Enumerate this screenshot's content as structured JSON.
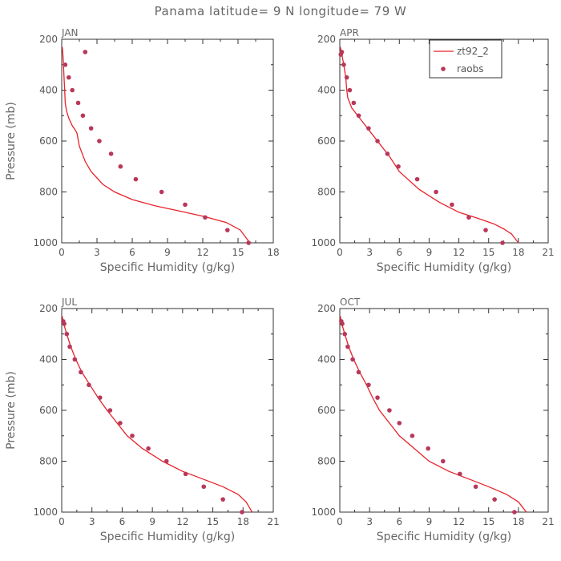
{
  "figure_title": "Panama  latitude= 9 N longitude= 79 W",
  "colors": {
    "model": "#e8232b",
    "obs": "#b8385a",
    "axis": "#333333",
    "text": "#666666"
  },
  "chart_data": [
    {
      "type": "line",
      "panel": "JAN",
      "xlabel": "Specific Humidity (g/kg)",
      "ylabel": "Pressure (mb)",
      "xlim": [
        0,
        18
      ],
      "ylim": [
        1000,
        200
      ],
      "xticks": [
        0,
        3,
        6,
        9,
        12,
        15,
        18
      ],
      "yticks": [
        200,
        400,
        600,
        800,
        1000
      ],
      "series": [
        {
          "name": "zt92_2",
          "kind": "line",
          "x": [
            0.05,
            0.1,
            0.15,
            0.2,
            0.25,
            0.3,
            0.4,
            0.6,
            0.9,
            1.2,
            1.3,
            1.5,
            2.0,
            2.5,
            3.0,
            3.5,
            4.5,
            6.0,
            8.0,
            10.0,
            12.0,
            14.0,
            15.2,
            16.0
          ],
          "y": [
            230,
            260,
            300,
            350,
            400,
            450,
            480,
            510,
            540,
            560,
            570,
            620,
            680,
            720,
            745,
            770,
            800,
            830,
            855,
            875,
            895,
            920,
            950,
            1000
          ]
        },
        {
          "name": "raobs",
          "kind": "scatter",
          "x": [
            2.0,
            0.3,
            0.6,
            0.9,
            1.4,
            1.8,
            2.5,
            3.2,
            4.2,
            5.0,
            6.3,
            8.5,
            10.5,
            12.2,
            14.1,
            15.9
          ],
          "y": [
            250,
            300,
            350,
            400,
            450,
            500,
            550,
            600,
            650,
            700,
            750,
            800,
            850,
            900,
            950,
            1000
          ]
        }
      ]
    },
    {
      "type": "line",
      "panel": "APR",
      "xlabel": "Specific Humidity (g/kg)",
      "ylabel": "",
      "xlim": [
        0,
        21
      ],
      "ylim": [
        1000,
        200
      ],
      "xticks": [
        0,
        3,
        6,
        9,
        12,
        15,
        18,
        21
      ],
      "yticks": [
        200,
        400,
        600,
        800,
        1000
      ],
      "legend": {
        "position": "top-right",
        "entries": [
          "zt92_2",
          "raobs"
        ]
      },
      "series": [
        {
          "name": "zt92_2",
          "kind": "line",
          "x": [
            0.05,
            0.2,
            0.4,
            0.6,
            0.7,
            0.8,
            1.2,
            2.0,
            3.0,
            4.0,
            5.0,
            6.0,
            8.0,
            10.0,
            12.0,
            14.0,
            15.5,
            16.5,
            17.3,
            18.0
          ],
          "y": [
            230,
            260,
            300,
            350,
            400,
            430,
            470,
            510,
            560,
            610,
            660,
            720,
            790,
            840,
            880,
            905,
            925,
            945,
            965,
            1000
          ]
        },
        {
          "name": "raobs",
          "kind": "scatter",
          "x": [
            0.2,
            0.1,
            0.4,
            0.7,
            1.0,
            1.4,
            1.9,
            2.9,
            3.8,
            4.8,
            5.9,
            7.8,
            9.7,
            11.3,
            13.0,
            14.7,
            16.4
          ],
          "y": [
            250,
            260,
            300,
            350,
            400,
            450,
            500,
            550,
            600,
            650,
            700,
            750,
            800,
            850,
            900,
            950,
            1000
          ]
        }
      ]
    },
    {
      "type": "line",
      "panel": "JUL",
      "xlabel": "Specific Humidity (g/kg)",
      "ylabel": "Pressure (mb)",
      "xlim": [
        0,
        21
      ],
      "ylim": [
        1000,
        200
      ],
      "xticks": [
        0,
        3,
        6,
        9,
        12,
        15,
        18,
        21
      ],
      "yticks": [
        200,
        400,
        600,
        800,
        1000
      ],
      "series": [
        {
          "name": "zt92_2",
          "kind": "line",
          "x": [
            0.05,
            0.2,
            0.5,
            0.9,
            1.4,
            2.0,
            2.8,
            3.6,
            4.5,
            5.5,
            6.5,
            8.0,
            10.0,
            12.0,
            14.0,
            16.0,
            17.5,
            18.3,
            18.9
          ],
          "y": [
            230,
            260,
            300,
            350,
            400,
            450,
            500,
            550,
            600,
            650,
            700,
            750,
            800,
            840,
            870,
            900,
            930,
            960,
            1000
          ]
        },
        {
          "name": "raobs",
          "kind": "scatter",
          "x": [
            0.15,
            0.25,
            0.5,
            0.8,
            1.3,
            1.9,
            2.7,
            3.8,
            4.8,
            5.8,
            7.0,
            8.6,
            10.4,
            12.3,
            14.1,
            16.0,
            17.9
          ],
          "y": [
            250,
            260,
            300,
            350,
            400,
            450,
            500,
            550,
            600,
            650,
            700,
            750,
            800,
            850,
            900,
            950,
            1000
          ]
        }
      ]
    },
    {
      "type": "line",
      "panel": "OCT",
      "xlabel": "Specific Humidity (g/kg)",
      "ylabel": "",
      "xlim": [
        0,
        21
      ],
      "ylim": [
        1000,
        200
      ],
      "xticks": [
        0,
        3,
        6,
        9,
        12,
        15,
        18,
        21
      ],
      "yticks": [
        200,
        400,
        600,
        800,
        1000
      ],
      "series": [
        {
          "name": "zt92_2",
          "kind": "line",
          "x": [
            0.05,
            0.2,
            0.5,
            0.9,
            1.4,
            2.0,
            2.7,
            3.3,
            4.0,
            5.0,
            6.0,
            7.5,
            9.0,
            11.0,
            13.0,
            15.0,
            16.8,
            18.0,
            18.8
          ],
          "y": [
            230,
            260,
            300,
            350,
            400,
            450,
            500,
            550,
            600,
            650,
            700,
            750,
            800,
            840,
            870,
            900,
            930,
            960,
            1000
          ]
        },
        {
          "name": "raobs",
          "kind": "scatter",
          "x": [
            0.15,
            0.25,
            0.5,
            0.8,
            1.3,
            1.9,
            2.9,
            3.8,
            5.0,
            6.0,
            7.3,
            8.9,
            10.4,
            12.1,
            13.7,
            15.6,
            17.6
          ],
          "y": [
            250,
            260,
            300,
            350,
            400,
            450,
            500,
            550,
            600,
            650,
            700,
            750,
            800,
            850,
            900,
            950,
            1000
          ]
        }
      ]
    }
  ]
}
